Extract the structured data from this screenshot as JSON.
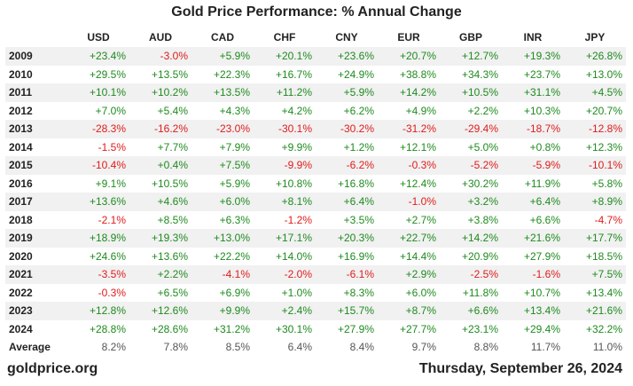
{
  "chart_data": {
    "type": "table",
    "title": "Gold Price Performance: % Annual Change",
    "columns": [
      "USD",
      "AUD",
      "CAD",
      "CHF",
      "CNY",
      "EUR",
      "GBP",
      "INR",
      "JPY"
    ],
    "rows": [
      {
        "year": "2009",
        "values": [
          "+23.4%",
          "-3.0%",
          "+5.9%",
          "+20.1%",
          "+23.6%",
          "+20.7%",
          "+12.7%",
          "+19.3%",
          "+26.8%"
        ]
      },
      {
        "year": "2010",
        "values": [
          "+29.5%",
          "+13.5%",
          "+22.3%",
          "+16.7%",
          "+24.9%",
          "+38.8%",
          "+34.3%",
          "+23.7%",
          "+13.0%"
        ]
      },
      {
        "year": "2011",
        "values": [
          "+10.1%",
          "+10.2%",
          "+13.5%",
          "+11.2%",
          "+5.9%",
          "+14.2%",
          "+10.5%",
          "+31.1%",
          "+4.5%"
        ]
      },
      {
        "year": "2012",
        "values": [
          "+7.0%",
          "+5.4%",
          "+4.3%",
          "+4.2%",
          "+6.2%",
          "+4.9%",
          "+2.2%",
          "+10.3%",
          "+20.7%"
        ]
      },
      {
        "year": "2013",
        "values": [
          "-28.3%",
          "-16.2%",
          "-23.0%",
          "-30.1%",
          "-30.2%",
          "-31.2%",
          "-29.4%",
          "-18.7%",
          "-12.8%"
        ]
      },
      {
        "year": "2014",
        "values": [
          "-1.5%",
          "+7.7%",
          "+7.9%",
          "+9.9%",
          "+1.2%",
          "+12.1%",
          "+5.0%",
          "+0.8%",
          "+12.3%"
        ]
      },
      {
        "year": "2015",
        "values": [
          "-10.4%",
          "+0.4%",
          "+7.5%",
          "-9.9%",
          "-6.2%",
          "-0.3%",
          "-5.2%",
          "-5.9%",
          "-10.1%"
        ]
      },
      {
        "year": "2016",
        "values": [
          "+9.1%",
          "+10.5%",
          "+5.9%",
          "+10.8%",
          "+16.8%",
          "+12.4%",
          "+30.2%",
          "+11.9%",
          "+5.8%"
        ]
      },
      {
        "year": "2017",
        "values": [
          "+13.6%",
          "+4.6%",
          "+6.0%",
          "+8.1%",
          "+6.4%",
          "-1.0%",
          "+3.2%",
          "+6.4%",
          "+8.9%"
        ]
      },
      {
        "year": "2018",
        "values": [
          "-2.1%",
          "+8.5%",
          "+6.3%",
          "-1.2%",
          "+3.5%",
          "+2.7%",
          "+3.8%",
          "+6.6%",
          "-4.7%"
        ]
      },
      {
        "year": "2019",
        "values": [
          "+18.9%",
          "+19.3%",
          "+13.0%",
          "+17.1%",
          "+20.3%",
          "+22.7%",
          "+14.2%",
          "+21.6%",
          "+17.7%"
        ]
      },
      {
        "year": "2020",
        "values": [
          "+24.6%",
          "+13.6%",
          "+22.2%",
          "+14.0%",
          "+16.9%",
          "+14.4%",
          "+20.9%",
          "+27.9%",
          "+18.5%"
        ]
      },
      {
        "year": "2021",
        "values": [
          "-3.5%",
          "+2.2%",
          "-4.1%",
          "-2.0%",
          "-6.1%",
          "+2.9%",
          "-2.5%",
          "-1.6%",
          "+7.5%"
        ]
      },
      {
        "year": "2022",
        "values": [
          "-0.3%",
          "+6.5%",
          "+6.9%",
          "+1.0%",
          "+8.3%",
          "+6.0%",
          "+11.8%",
          "+10.7%",
          "+13.4%"
        ]
      },
      {
        "year": "2023",
        "values": [
          "+12.8%",
          "+12.6%",
          "+9.9%",
          "+2.4%",
          "+15.7%",
          "+8.7%",
          "+6.6%",
          "+13.4%",
          "+21.6%"
        ]
      },
      {
        "year": "2024",
        "values": [
          "+28.8%",
          "+28.6%",
          "+31.2%",
          "+30.1%",
          "+27.9%",
          "+27.7%",
          "+23.1%",
          "+29.4%",
          "+32.2%"
        ]
      }
    ],
    "average": {
      "label": "Average",
      "values": [
        "8.2%",
        "7.8%",
        "8.5%",
        "6.4%",
        "8.4%",
        "9.7%",
        "8.8%",
        "11.7%",
        "11.0%"
      ]
    },
    "colors": {
      "positive": "#1f8a1f",
      "negative": "#e01b1b",
      "row_stripe": "#f1f1f1"
    }
  },
  "footer": {
    "source": "goldprice.org",
    "date": "Thursday, September 26, 2024"
  }
}
